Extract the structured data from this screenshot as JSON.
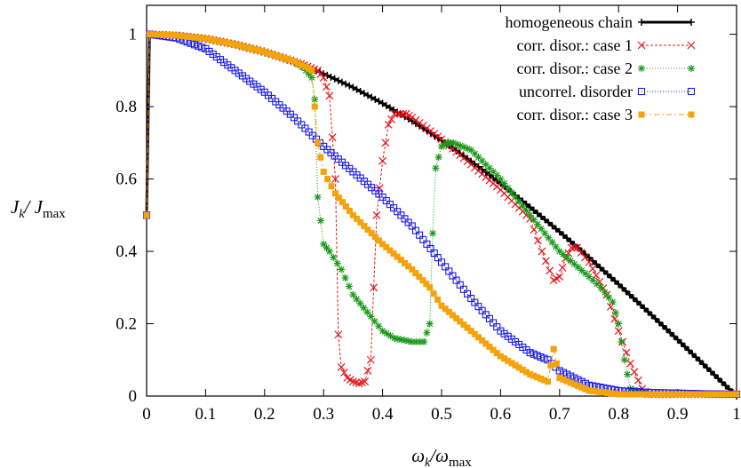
{
  "chart_data": {
    "type": "line",
    "xlabel_main": "ω",
    "xlabel_sub": "k",
    "xlabel_den": "/ω",
    "xlabel_densub": "max",
    "ylabel_main": "J",
    "ylabel_sub": "k",
    "ylabel_den": "/ J",
    "ylabel_densub": "max",
    "xlim": [
      0,
      1
    ],
    "ylim": [
      0,
      1.08
    ],
    "xticks": [
      "0",
      "0.1",
      "0.2",
      "0.3",
      "0.4",
      "0.5",
      "0.6",
      "0.7",
      "0.8",
      "0.9",
      "1"
    ],
    "yticks": [
      "0",
      "0.2",
      "0.4",
      "0.6",
      "0.8",
      "1"
    ],
    "legend_position": "top-right",
    "grid": false,
    "series": [
      {
        "name": "homogeneous chain",
        "color": "#000000",
        "marker": "plus",
        "dash": "solid",
        "width": 3,
        "x": [
          0,
          0.005,
          0.05,
          0.1,
          0.15,
          0.2,
          0.25,
          0.3,
          0.35,
          0.4,
          0.45,
          0.5,
          0.55,
          0.6,
          0.65,
          0.7,
          0.75,
          0.8,
          0.85,
          0.9,
          0.95,
          1.0
        ],
        "y": [
          0.5,
          1.0,
          0.997,
          0.988,
          0.972,
          0.951,
          0.924,
          0.891,
          0.853,
          0.809,
          0.76,
          0.707,
          0.649,
          0.588,
          0.522,
          0.454,
          0.383,
          0.309,
          0.233,
          0.156,
          0.078,
          0.0
        ]
      },
      {
        "name": "corr. disor.: case 1",
        "color": "#e8141a",
        "marker": "x",
        "dash": "3,2",
        "width": 1,
        "x": [
          0,
          0.005,
          0.05,
          0.1,
          0.15,
          0.2,
          0.25,
          0.29,
          0.3,
          0.31,
          0.32,
          0.325,
          0.33,
          0.34,
          0.35,
          0.36,
          0.37,
          0.38,
          0.385,
          0.39,
          0.4,
          0.41,
          0.42,
          0.43,
          0.44,
          0.45,
          0.5,
          0.55,
          0.6,
          0.65,
          0.67,
          0.69,
          0.7,
          0.71,
          0.72,
          0.73,
          0.75,
          0.78,
          0.8,
          0.82,
          0.84,
          0.85,
          0.9,
          1.0
        ],
        "y": [
          0.5,
          1.0,
          0.997,
          0.988,
          0.972,
          0.951,
          0.925,
          0.9,
          0.88,
          0.83,
          0.6,
          0.17,
          0.08,
          0.05,
          0.04,
          0.035,
          0.04,
          0.1,
          0.3,
          0.5,
          0.65,
          0.75,
          0.78,
          0.78,
          0.78,
          0.77,
          0.71,
          0.64,
          0.57,
          0.49,
          0.4,
          0.32,
          0.33,
          0.38,
          0.41,
          0.41,
          0.37,
          0.28,
          0.18,
          0.09,
          0.02,
          0.005,
          0.005,
          0.005
        ]
      },
      {
        "name": "corr. disor.: case 2",
        "color": "#1b9a1b",
        "marker": "star",
        "dash": "1,2",
        "width": 1,
        "x": [
          0,
          0.005,
          0.05,
          0.1,
          0.15,
          0.2,
          0.25,
          0.27,
          0.28,
          0.285,
          0.29,
          0.3,
          0.31,
          0.33,
          0.35,
          0.38,
          0.4,
          0.42,
          0.45,
          0.47,
          0.48,
          0.485,
          0.49,
          0.5,
          0.51,
          0.52,
          0.55,
          0.6,
          0.65,
          0.7,
          0.75,
          0.77,
          0.79,
          0.8,
          0.81,
          0.82,
          0.85,
          0.9,
          1.0
        ],
        "y": [
          0.5,
          1.0,
          0.997,
          0.988,
          0.972,
          0.951,
          0.925,
          0.9,
          0.88,
          0.82,
          0.55,
          0.42,
          0.4,
          0.35,
          0.28,
          0.22,
          0.18,
          0.16,
          0.15,
          0.15,
          0.2,
          0.45,
          0.63,
          0.69,
          0.7,
          0.7,
          0.68,
          0.6,
          0.5,
          0.4,
          0.33,
          0.3,
          0.26,
          0.2,
          0.1,
          0.02,
          0.005,
          0.005,
          0.005
        ]
      },
      {
        "name": "uncorrel. disorder",
        "color": "#1c1ce6",
        "marker": "square",
        "dash": "1,2",
        "width": 1,
        "x": [
          0,
          0.005,
          0.05,
          0.1,
          0.15,
          0.2,
          0.25,
          0.3,
          0.35,
          0.4,
          0.45,
          0.5,
          0.55,
          0.6,
          0.65,
          0.68,
          0.7,
          0.75,
          0.8,
          0.85,
          0.9,
          0.95,
          1.0
        ],
        "y": [
          0.5,
          1.0,
          0.99,
          0.96,
          0.9,
          0.84,
          0.77,
          0.69,
          0.62,
          0.55,
          0.47,
          0.37,
          0.27,
          0.18,
          0.12,
          0.1,
          0.07,
          0.03,
          0.015,
          0.01,
          0.008,
          0.006,
          0.005
        ]
      },
      {
        "name": "corr. disor.: case 3",
        "color": "#f5a30c",
        "marker": "filled-square",
        "dash": "6,3,2,3",
        "width": 1,
        "x": [
          0,
          0.005,
          0.05,
          0.1,
          0.15,
          0.2,
          0.25,
          0.27,
          0.28,
          0.285,
          0.29,
          0.3,
          0.32,
          0.35,
          0.4,
          0.45,
          0.48,
          0.5,
          0.55,
          0.6,
          0.65,
          0.68,
          0.69,
          0.7,
          0.75,
          0.8,
          0.85,
          0.9,
          1.0
        ],
        "y": [
          0.5,
          1.0,
          0.997,
          0.988,
          0.972,
          0.951,
          0.925,
          0.91,
          0.9,
          0.8,
          0.7,
          0.62,
          0.56,
          0.5,
          0.42,
          0.35,
          0.3,
          0.25,
          0.18,
          0.11,
          0.06,
          0.04,
          0.13,
          0.05,
          0.015,
          0.005,
          0.005,
          0.005,
          0.005
        ]
      }
    ]
  }
}
